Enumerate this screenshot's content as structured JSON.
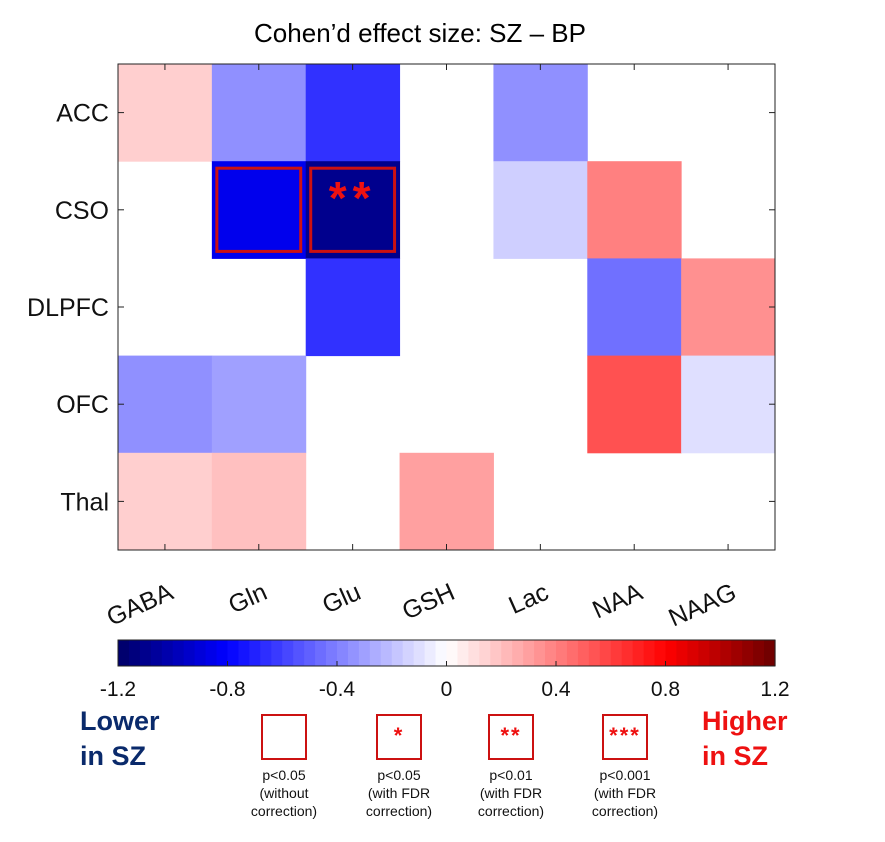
{
  "chart_data": {
    "type": "heatmap",
    "title": "Cohen’d effect size: SZ – BP",
    "rows": [
      "ACC",
      "CSO",
      "DLPFC",
      "OFC",
      "Thal"
    ],
    "columns": [
      "GABA",
      "Gln",
      "Glu",
      "GSH",
      "Lac",
      "NAA",
      "NAAG"
    ],
    "values": [
      [
        0.15,
        -0.35,
        -0.65,
        null,
        -0.35,
        null,
        null
      ],
      [
        null,
        -0.85,
        -1.1,
        null,
        -0.15,
        0.4,
        null
      ],
      [
        null,
        null,
        -0.65,
        null,
        null,
        -0.45,
        0.35
      ],
      [
        -0.35,
        -0.3,
        null,
        null,
        null,
        0.55,
        -0.1
      ],
      [
        0.15,
        0.2,
        null,
        0.3,
        null,
        null,
        null
      ]
    ],
    "significance": [
      {
        "row": "CSO",
        "column": "Gln",
        "marker": ""
      },
      {
        "row": "CSO",
        "column": "Glu",
        "marker": "**"
      }
    ],
    "colorbar": {
      "min": -1.2,
      "max": 1.2,
      "ticks": [
        -1.2,
        -0.8,
        -0.4,
        0,
        0.4,
        0.8,
        1.2
      ],
      "tick_labels": [
        "-1.2",
        "-0.8",
        "-0.4",
        "0",
        "0.4",
        "0.8",
        "1.2"
      ],
      "low_color": "#000066",
      "mid_low_color": "#0000ff",
      "mid_color": "#ffffff",
      "mid_high_color": "#ff0000",
      "high_color": "#6b0000"
    }
  },
  "annotations": {
    "lower_label": [
      "Lower",
      "in SZ"
    ],
    "higher_label": [
      "Higher",
      "in SZ"
    ]
  },
  "legend": [
    {
      "marker": "",
      "lines": [
        "p<0.05",
        "(without",
        "correction)"
      ]
    },
    {
      "marker": "*",
      "lines": [
        "p<0.05",
        "(with FDR",
        "correction)"
      ]
    },
    {
      "marker": "**",
      "lines": [
        "p<0.01",
        "(with FDR",
        "correction)"
      ]
    },
    {
      "marker": "***",
      "lines": [
        "p<0.001",
        "(with FDR",
        "correction)"
      ]
    }
  ],
  "colors": {
    "sig_box": "#cc1111",
    "sig_marker": "#ee1111",
    "lower_text": "#0a2a6b",
    "higher_text": "#ee1111"
  }
}
